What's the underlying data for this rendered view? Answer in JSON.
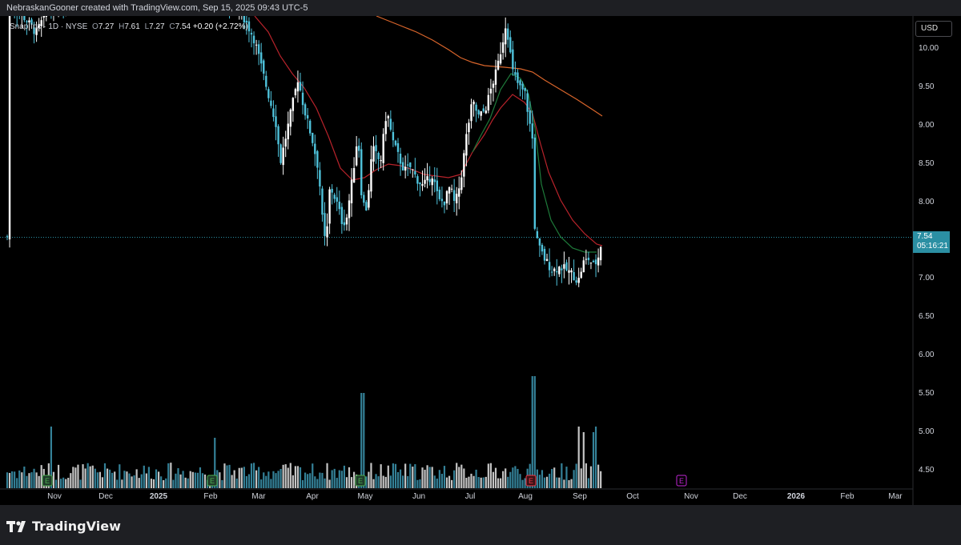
{
  "header": {
    "credit": "NebraskanGooner created with TradingView.com, Sep 15, 2025 09:43 UTC-5"
  },
  "legend": {
    "symbol": "Snap Inc · 1D · NYSE",
    "open_label": "O",
    "open": "7.27",
    "high_label": "H",
    "high": "7.61",
    "low_label": "L",
    "low": "7.27",
    "close_label": "C",
    "close": "7.54",
    "change": "+0.20 (+2.72%)"
  },
  "price_axis": {
    "currency": "USD",
    "ticks": [
      "10.00",
      "9.50",
      "9.00",
      "8.50",
      "8.00",
      "7.50",
      "7.00",
      "6.50",
      "6.00",
      "5.50",
      "5.00",
      "4.50"
    ],
    "last_price": "7.54",
    "countdown": "05:16:21"
  },
  "time_axis": {
    "labels": [
      "Nov",
      "Dec",
      "2025",
      "Feb",
      "Mar",
      "Apr",
      "May",
      "Jun",
      "Jul",
      "Aug",
      "Sep",
      "Oct",
      "Nov",
      "Dec",
      "2026",
      "Feb",
      "Mar"
    ]
  },
  "earnings_markers": {
    "label": "E"
  },
  "footer": {
    "brand": "TradingView"
  },
  "colors": {
    "up": "#ffffff",
    "down": "#4fc3dc",
    "ma_short": "#1e7a3a",
    "ma_mid": "#b8232b",
    "ma_long": "#d9652b",
    "price_line": "#2b8fa3",
    "earnings_past": "#d1d4dc",
    "earnings_red": "#f23645",
    "earnings_future": "#c026d3"
  },
  "chart_data": {
    "type": "candlestick",
    "title": "",
    "xlabel": "",
    "ylabel": "",
    "ylim": [
      4.3,
      10.3
    ],
    "x_range": [
      "2024-10-16",
      "2026-03-20"
    ],
    "last_close": 7.54,
    "key_swings": [
      {
        "date": "2025-02-14",
        "price": 10.4
      },
      {
        "date": "2025-04-04",
        "price": 7.1
      },
      {
        "date": "2025-05-01",
        "price": 9.2
      },
      {
        "date": "2025-06-20",
        "price": 7.8
      },
      {
        "date": "2025-07-21",
        "price": 10.3
      },
      {
        "date": "2025-08-06",
        "price": 7.9
      },
      {
        "date": "2025-09-05",
        "price": 6.93
      },
      {
        "date": "2025-09-12",
        "price": 7.54
      }
    ],
    "moving_averages": [
      "short",
      "mid",
      "long"
    ],
    "earnings_events": [
      {
        "date": "2024-10-29",
        "status": "past"
      },
      {
        "date": "2025-02-04",
        "status": "past"
      },
      {
        "date": "2025-04-29",
        "status": "past"
      },
      {
        "date": "2025-08-05",
        "status": "past"
      },
      {
        "date": "2025-11-04",
        "status": "upcoming"
      }
    ],
    "grid": false,
    "legend": "top-left"
  }
}
